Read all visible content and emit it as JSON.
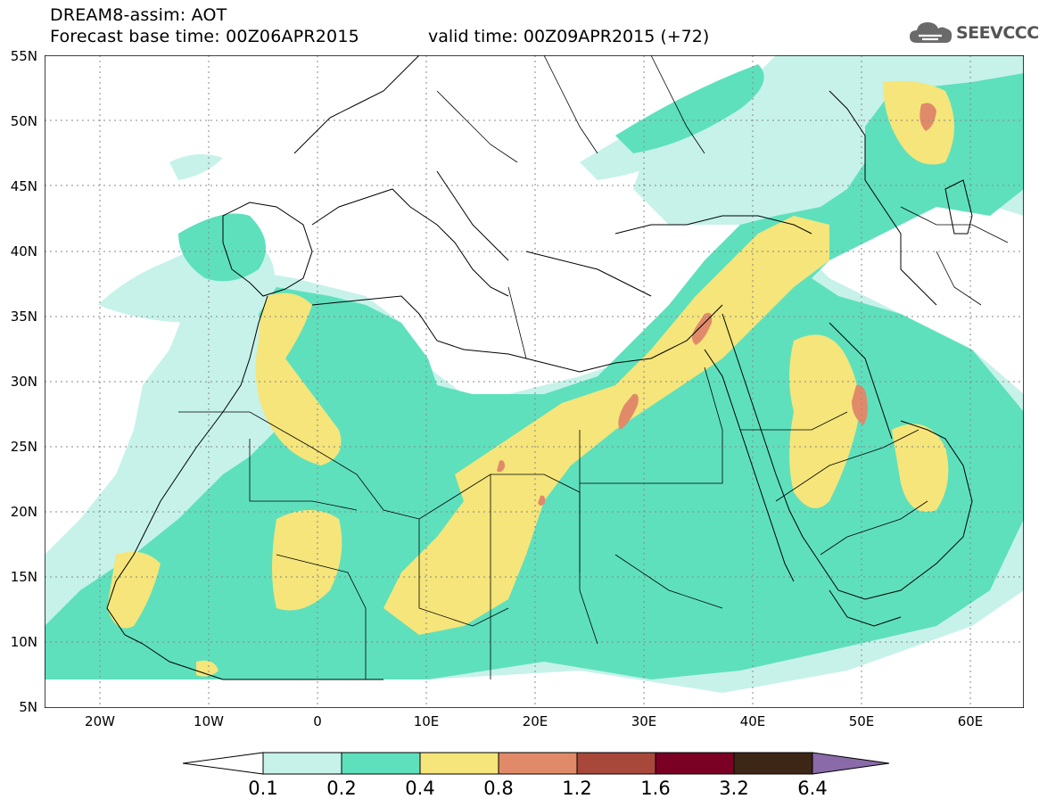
{
  "header": {
    "title_line1": "DREAM8-assim: AOT",
    "title_line2": "Forecast base time: 00Z06APR2015",
    "valid_time": "valid time: 00Z09APR2015 (+72)"
  },
  "logo": {
    "text": "SEEVCCC",
    "icon": "cloud-icon"
  },
  "map": {
    "latitude_labels": [
      "55N",
      "50N",
      "45N",
      "40N",
      "35N",
      "30N",
      "25N",
      "20N",
      "15N",
      "10N",
      "5N"
    ],
    "longitude_labels": [
      "20W",
      "10W",
      "0",
      "10E",
      "20E",
      "30E",
      "40E",
      "50E",
      "60E"
    ],
    "grid": "dotted",
    "field_colors": {
      "0.1-0.2": "#c6f2ea",
      "0.2-0.4": "#5ee0bd",
      "0.4-0.8": "#f5e57a",
      "0.8-1.2": "#e08a6a",
      "background": "#ffffff",
      "borders": "#000000"
    }
  },
  "colorbar": {
    "labels": [
      "0.1",
      "0.2",
      "0.4",
      "0.8",
      "1.2",
      "1.6",
      "3.2",
      "6.4"
    ],
    "colors": [
      "#ffffff",
      "#c6f2ea",
      "#5ee0bd",
      "#f5e57a",
      "#e08a6a",
      "#a8483a",
      "#7a0024",
      "#3c2616",
      "#8a6aa8"
    ]
  }
}
